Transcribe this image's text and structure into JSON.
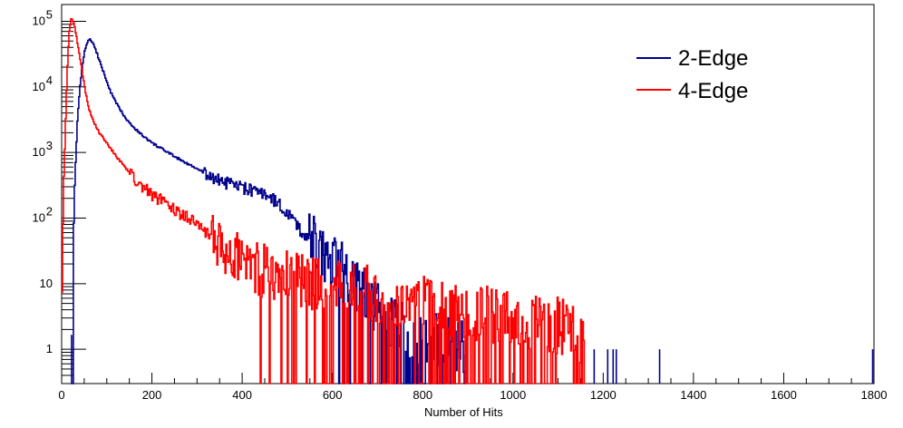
{
  "chart_data": {
    "type": "line",
    "title": "",
    "xlabel": "Number of Hits",
    "ylabel": "",
    "xlim": [
      0,
      1800
    ],
    "ylim": [
      0.3,
      180000
    ],
    "yscale": "log",
    "grid": false,
    "legend_position": "top-right",
    "x_ticks": [
      0,
      200,
      400,
      600,
      800,
      1000,
      1200,
      1400,
      1600,
      1800
    ],
    "x_tick_labels": [
      "0",
      "200",
      "400",
      "600",
      "800",
      "1000",
      "1200",
      "1400",
      "1600",
      "1800"
    ],
    "y_ticks": [
      1,
      10,
      100,
      1000,
      10000,
      100000
    ],
    "y_tick_labels": [
      {
        "base": "1",
        "exp": ""
      },
      {
        "base": "10",
        "exp": ""
      },
      {
        "base": "10",
        "exp": "2"
      },
      {
        "base": "10",
        "exp": "3"
      },
      {
        "base": "10",
        "exp": "4"
      },
      {
        "base": "10",
        "exp": "5"
      }
    ],
    "series": [
      {
        "name": "2-Edge",
        "color": "#00008b",
        "points": [
          [
            20,
            0.3
          ],
          [
            22,
            2
          ],
          [
            26,
            40
          ],
          [
            30,
            500
          ],
          [
            35,
            3000
          ],
          [
            40,
            9000
          ],
          [
            45,
            18000
          ],
          [
            50,
            32000
          ],
          [
            55,
            45000
          ],
          [
            60,
            52000
          ],
          [
            65,
            52000
          ],
          [
            70,
            46000
          ],
          [
            80,
            30000
          ],
          [
            90,
            19000
          ],
          [
            100,
            12000
          ],
          [
            110,
            8000
          ],
          [
            120,
            5800
          ],
          [
            140,
            3500
          ],
          [
            160,
            2400
          ],
          [
            180,
            1800
          ],
          [
            200,
            1400
          ],
          [
            230,
            1050
          ],
          [
            260,
            800
          ],
          [
            300,
            560
          ],
          [
            340,
            400
          ],
          [
            380,
            320
          ],
          [
            420,
            270
          ],
          [
            440,
            240
          ],
          [
            460,
            220
          ],
          [
            480,
            170
          ],
          [
            500,
            120
          ],
          [
            520,
            80
          ],
          [
            540,
            55
          ],
          [
            560,
            40
          ],
          [
            580,
            28
          ],
          [
            600,
            20
          ],
          [
            620,
            16
          ],
          [
            640,
            12
          ],
          [
            660,
            9
          ],
          [
            680,
            6
          ],
          [
            700,
            4
          ],
          [
            720,
            3
          ],
          [
            740,
            2.3
          ],
          [
            760,
            2
          ],
          [
            780,
            1.7
          ],
          [
            800,
            1.5
          ],
          [
            820,
            1.4
          ],
          [
            840,
            1.3
          ],
          [
            860,
            1.2
          ],
          [
            880,
            1.1
          ],
          [
            900,
            1
          ]
        ],
        "isolated": [
          {
            "x": 1180,
            "y": 1
          },
          {
            "x": 1210,
            "y": 1
          },
          {
            "x": 1222,
            "y": 1
          },
          {
            "x": 1229,
            "y": 1
          },
          {
            "x": 1325,
            "y": 1
          },
          {
            "x": 1797,
            "y": 1
          }
        ]
      },
      {
        "name": "4-Edge",
        "color": "#ff0000",
        "points": [
          [
            0,
            5
          ],
          [
            4,
            200
          ],
          [
            8,
            2000
          ],
          [
            12,
            15000
          ],
          [
            16,
            60000
          ],
          [
            20,
            105000
          ],
          [
            23,
            110000
          ],
          [
            26,
            100000
          ],
          [
            30,
            75000
          ],
          [
            35,
            48000
          ],
          [
            40,
            30000
          ],
          [
            45,
            18000
          ],
          [
            50,
            11000
          ],
          [
            55,
            7000
          ],
          [
            60,
            4800
          ],
          [
            70,
            3000
          ],
          [
            80,
            2200
          ],
          [
            100,
            1400
          ],
          [
            120,
            900
          ],
          [
            140,
            600
          ],
          [
            160,
            420
          ],
          [
            180,
            300
          ],
          [
            200,
            230
          ],
          [
            240,
            160
          ],
          [
            280,
            100
          ],
          [
            300,
            80
          ],
          [
            320,
            60
          ],
          [
            340,
            45
          ],
          [
            360,
            38
          ],
          [
            380,
            30
          ],
          [
            400,
            24
          ],
          [
            440,
            17
          ],
          [
            480,
            13
          ],
          [
            500,
            12
          ],
          [
            520,
            11
          ],
          [
            540,
            10
          ],
          [
            560,
            9.5
          ],
          [
            580,
            9
          ],
          [
            600,
            8.5
          ],
          [
            640,
            7.5
          ],
          [
            680,
            7
          ],
          [
            720,
            6.5
          ],
          [
            760,
            5.8
          ],
          [
            800,
            5
          ],
          [
            840,
            4.5
          ],
          [
            880,
            4
          ],
          [
            920,
            3.6
          ],
          [
            960,
            3.2
          ],
          [
            1000,
            3
          ],
          [
            1040,
            2.7
          ],
          [
            1080,
            2.4
          ],
          [
            1120,
            2.2
          ],
          [
            1140,
            2
          ],
          [
            1150,
            1.2
          ],
          [
            1160,
            0.8
          ]
        ]
      }
    ]
  },
  "colors": {
    "frame": "#000000",
    "background": "#ffffff"
  }
}
